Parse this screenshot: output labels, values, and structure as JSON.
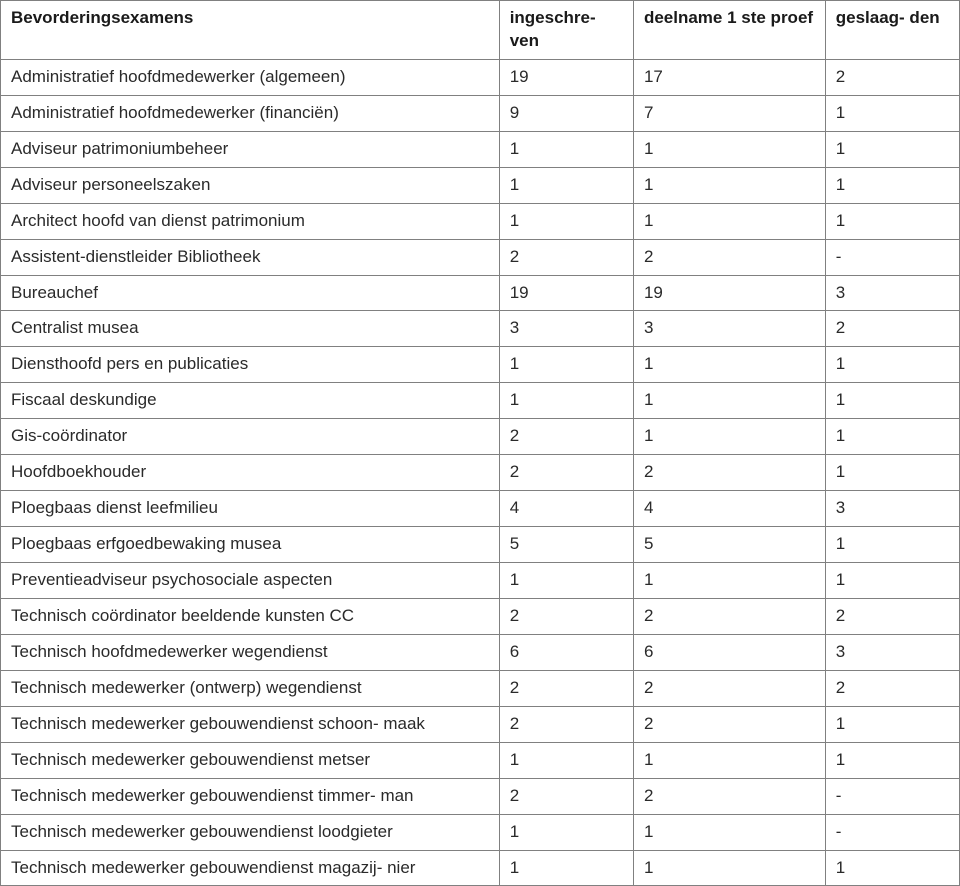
{
  "table": {
    "type": "table",
    "background_color": "#ffffff",
    "border_color": "#808080",
    "text_color": "#2a2a2a",
    "header_font_weight": "700",
    "font_family": "Verdana",
    "font_size_pt": 12,
    "column_widths_pct": [
      52,
      14,
      20,
      14
    ],
    "column_alignment": [
      "left",
      "left",
      "left",
      "left"
    ],
    "columns": [
      "Bevorderingsexamens",
      "ingeschre-\nven",
      "deelname 1 ste proef",
      "geslaag-\nden"
    ],
    "rows": [
      [
        "Administratief hoofdmedewerker (algemeen)",
        "19",
        "17",
        "2"
      ],
      [
        "Administratief hoofdmedewerker (financiën)",
        "9",
        "7",
        "1"
      ],
      [
        "Adviseur patrimoniumbeheer",
        "1",
        "1",
        "1"
      ],
      [
        "Adviseur personeelszaken",
        "1",
        "1",
        "1"
      ],
      [
        "Architect hoofd van dienst patrimonium",
        "1",
        "1",
        "1"
      ],
      [
        "Assistent-dienstleider Bibliotheek",
        "2",
        "2",
        "-"
      ],
      [
        "Bureauchef",
        "19",
        "19",
        "3"
      ],
      [
        "Centralist musea",
        "3",
        "3",
        "2"
      ],
      [
        "Diensthoofd pers en publicaties",
        "1",
        "1",
        "1"
      ],
      [
        "Fiscaal deskundige",
        "1",
        "1",
        "1"
      ],
      [
        "Gis-coördinator",
        "2",
        "1",
        "1"
      ],
      [
        "Hoofdboekhouder",
        "2",
        "2",
        "1"
      ],
      [
        "Ploegbaas dienst leefmilieu",
        "4",
        "4",
        "3"
      ],
      [
        "Ploegbaas erfgoedbewaking musea",
        "5",
        "5",
        "1"
      ],
      [
        "Preventieadviseur psychosociale aspecten",
        "1",
        "1",
        "1"
      ],
      [
        "Technisch coördinator beeldende kunsten CC",
        "2",
        "2",
        "2"
      ],
      [
        "Technisch hoofdmedewerker wegendienst",
        "6",
        "6",
        "3"
      ],
      [
        "Technisch medewerker (ontwerp) wegendienst",
        "2",
        "2",
        "2"
      ],
      [
        "Technisch medewerker gebouwendienst schoon-\nmaak",
        "2",
        "2",
        "1"
      ],
      [
        "Technisch medewerker gebouwendienst metser",
        "1",
        "1",
        "1"
      ],
      [
        "Technisch medewerker gebouwendienst timmer-\nman",
        "2",
        "2",
        "-"
      ],
      [
        "Technisch medewerker gebouwendienst loodgieter",
        "1",
        "1",
        "-"
      ],
      [
        "Technisch medewerker gebouwendienst magazij-\nnier",
        "1",
        "1",
        "1"
      ]
    ]
  }
}
